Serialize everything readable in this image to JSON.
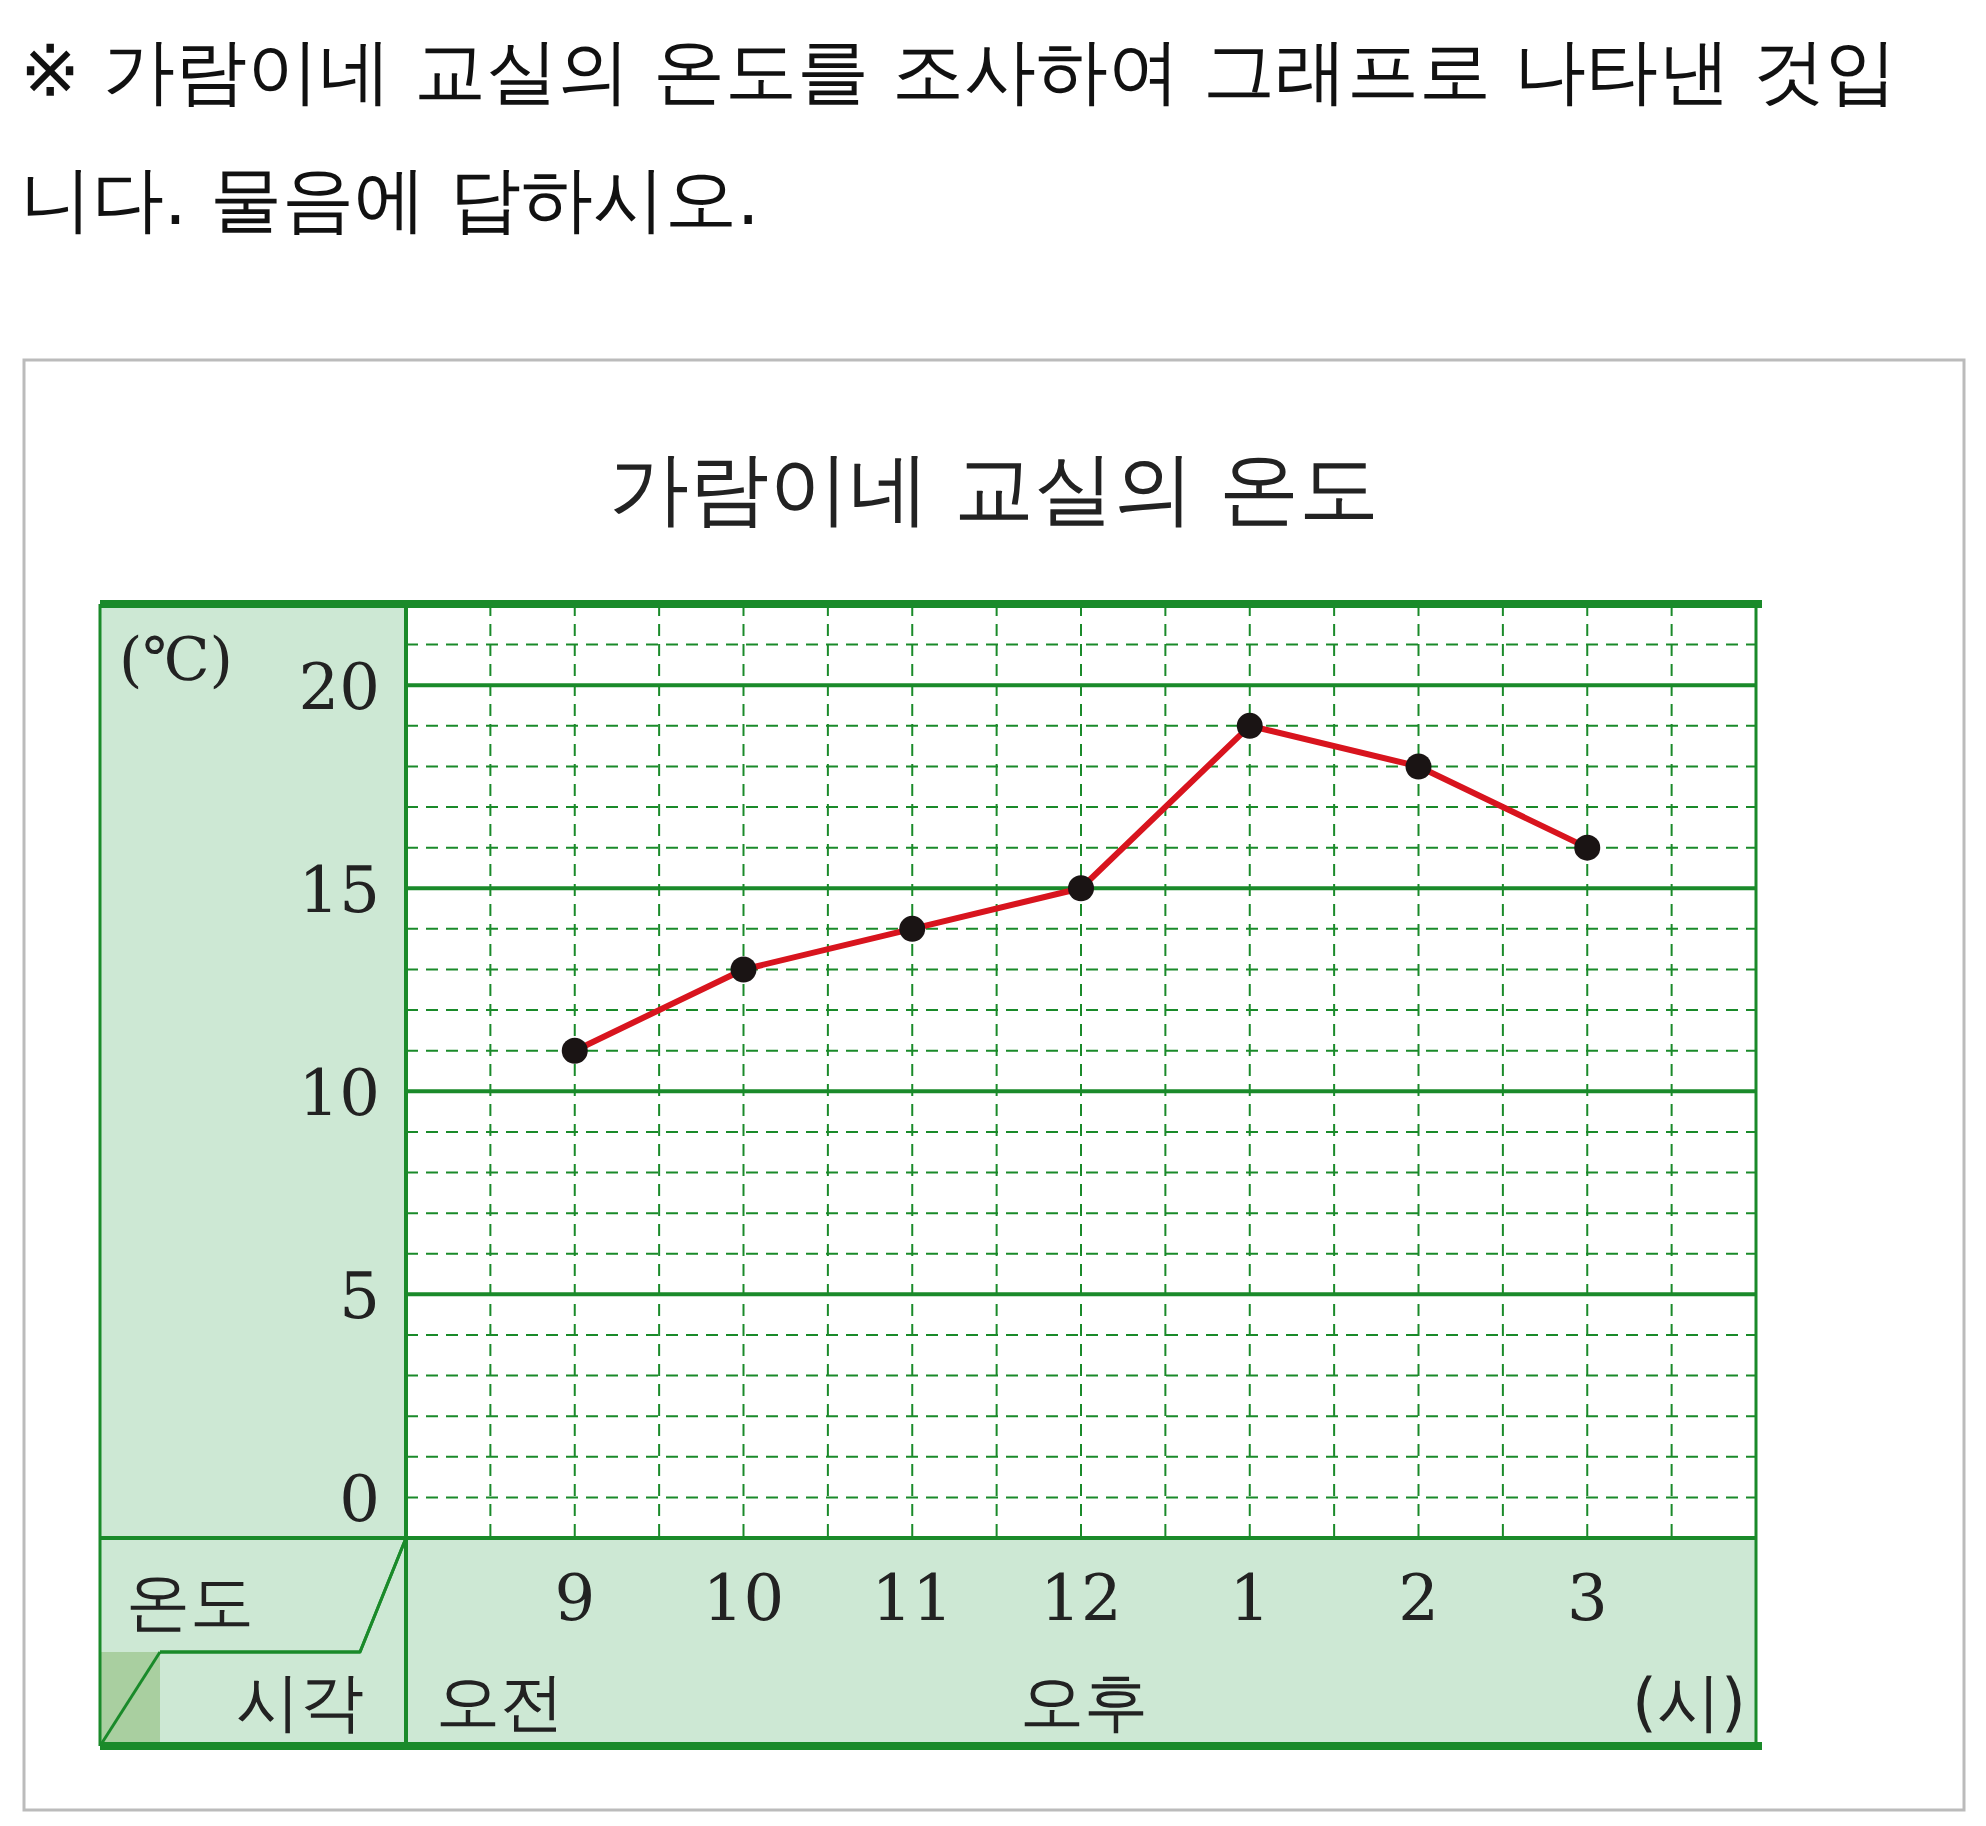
{
  "chart_data": {
    "type": "line",
    "title": "가람이네 교실의 온도",
    "ylabel": "(℃)",
    "categories": [
      "9",
      "10",
      "11",
      "12",
      "1",
      "2",
      "3"
    ],
    "series": [
      {
        "color": "#d8141e",
        "values": [
          11,
          13,
          14,
          15,
          19,
          18,
          16
        ]
      }
    ],
    "ylim": [
      -1,
      22
    ],
    "yticks": [
      0,
      5,
      10,
      15,
      20
    ],
    "grid": true,
    "marker": "circle",
    "line_style": "solid",
    "annotations": [
      "※ 가람이네 교실의 온도를 조사하여 그래프로 나타낸 것입니다. 물음에 답하시오.",
      "온도",
      "시각",
      "오전",
      "오후",
      "(시)"
    ]
  }
}
